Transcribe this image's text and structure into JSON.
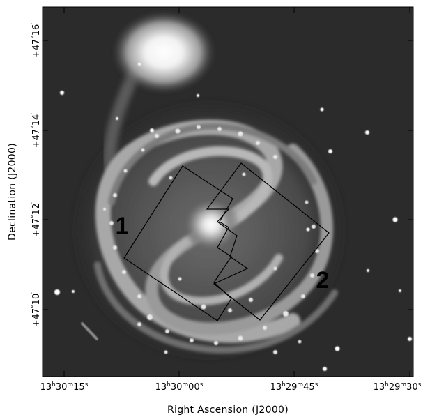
{
  "figure": {
    "x_axis_title": "Right Ascension (J2000)",
    "y_axis_title": "Declination (J2000)",
    "x_ticks": [
      {
        "h": "13",
        "m": "30",
        "s": "15"
      },
      {
        "h": "13",
        "m": "30",
        "s": "00"
      },
      {
        "h": "13",
        "m": "29",
        "s": "45"
      },
      {
        "h": "13",
        "m": "29",
        "s": "30"
      }
    ],
    "y_ticks": [
      {
        "deg": "+47",
        "min": "16"
      },
      {
        "deg": "+47",
        "min": "14"
      },
      {
        "deg": "+47",
        "min": "12"
      },
      {
        "deg": "+47",
        "min": "10"
      }
    ],
    "regions": [
      {
        "label": "1"
      },
      {
        "label": "2"
      }
    ],
    "colors": {
      "image_background": "#2b2b2b",
      "outline": "#000000"
    }
  }
}
